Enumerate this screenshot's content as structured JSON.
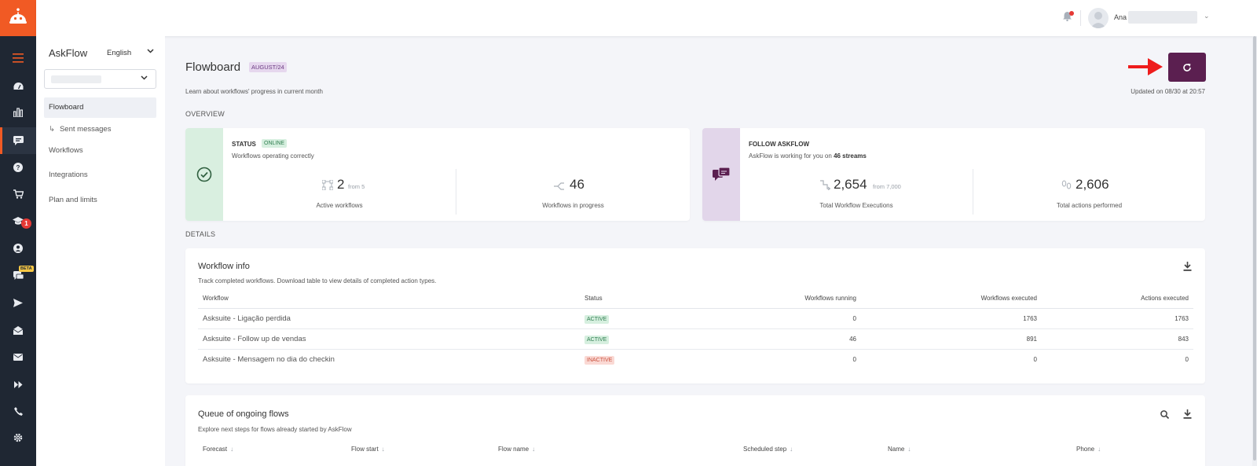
{
  "rail": {
    "badges": {
      "academy_count": "1",
      "beta_label": "BETA"
    }
  },
  "topbar": {
    "user_name": "Ana"
  },
  "sidebar": {
    "title": "AskFlow",
    "language": "English",
    "items": [
      {
        "label": "Flowboard"
      },
      {
        "label": "Sent messages"
      },
      {
        "label": "Workflows"
      },
      {
        "label": "Integrations"
      },
      {
        "label": "Plan and limits"
      }
    ]
  },
  "header": {
    "title": "Flowboard",
    "period_tag": "AUGUST/24",
    "subtitle": "Learn about workflows' progress in current month",
    "updated": "Updated on 08/30 at 20:57"
  },
  "overview": {
    "section_label": "OVERVIEW",
    "status_card": {
      "label": "STATUS",
      "online": "ONLINE",
      "description": "Workflows operating correctly",
      "active_workflows": {
        "value": "2",
        "from": "from 5",
        "label": "Active workflows"
      },
      "in_progress": {
        "value": "46",
        "label": "Workflows in progress"
      }
    },
    "follow_card": {
      "label": "FOLLOW ASKFLOW",
      "description_prefix": "AskFlow is working for you on",
      "description_bold": "46 streams",
      "executions": {
        "value": "2,654",
        "from": "from 7,000",
        "label": "Total Workflow Executions"
      },
      "actions": {
        "value": "2,606",
        "label": "Total actions performed"
      }
    }
  },
  "details": {
    "section_label": "DETAILS",
    "workflow_info": {
      "title": "Workflow info",
      "note": "Track completed workflows. Download table to view details of completed action types.",
      "columns": [
        "Workflow",
        "Status",
        "Workflows running",
        "Workflows executed",
        "Actions executed"
      ],
      "rows": [
        {
          "workflow": "Asksuite - Ligação perdida",
          "status": "ACTIVE",
          "running": "0",
          "executed": "1763",
          "actions": "1763"
        },
        {
          "workflow": "Asksuite - Follow up de vendas",
          "status": "ACTIVE",
          "running": "46",
          "executed": "891",
          "actions": "843"
        },
        {
          "workflow": "Asksuite - Mensagem no dia do checkin",
          "status": "INACTIVE",
          "running": "0",
          "executed": "0",
          "actions": "0"
        }
      ]
    },
    "queue": {
      "title": "Queue of ongoing flows",
      "note": "Explore next steps for flows already started by AskFlow",
      "columns": [
        "Forecast",
        "Flow start",
        "Flow name",
        "Scheduled step",
        "Name",
        "Phone"
      ]
    }
  },
  "colors": {
    "brand_orange": "#f15a24",
    "rail_dark": "#1f2733",
    "refresh_purple": "#5b1f50",
    "status_green_bg": "#d9efe0",
    "follow_purple_bg": "#e2d6ea"
  }
}
